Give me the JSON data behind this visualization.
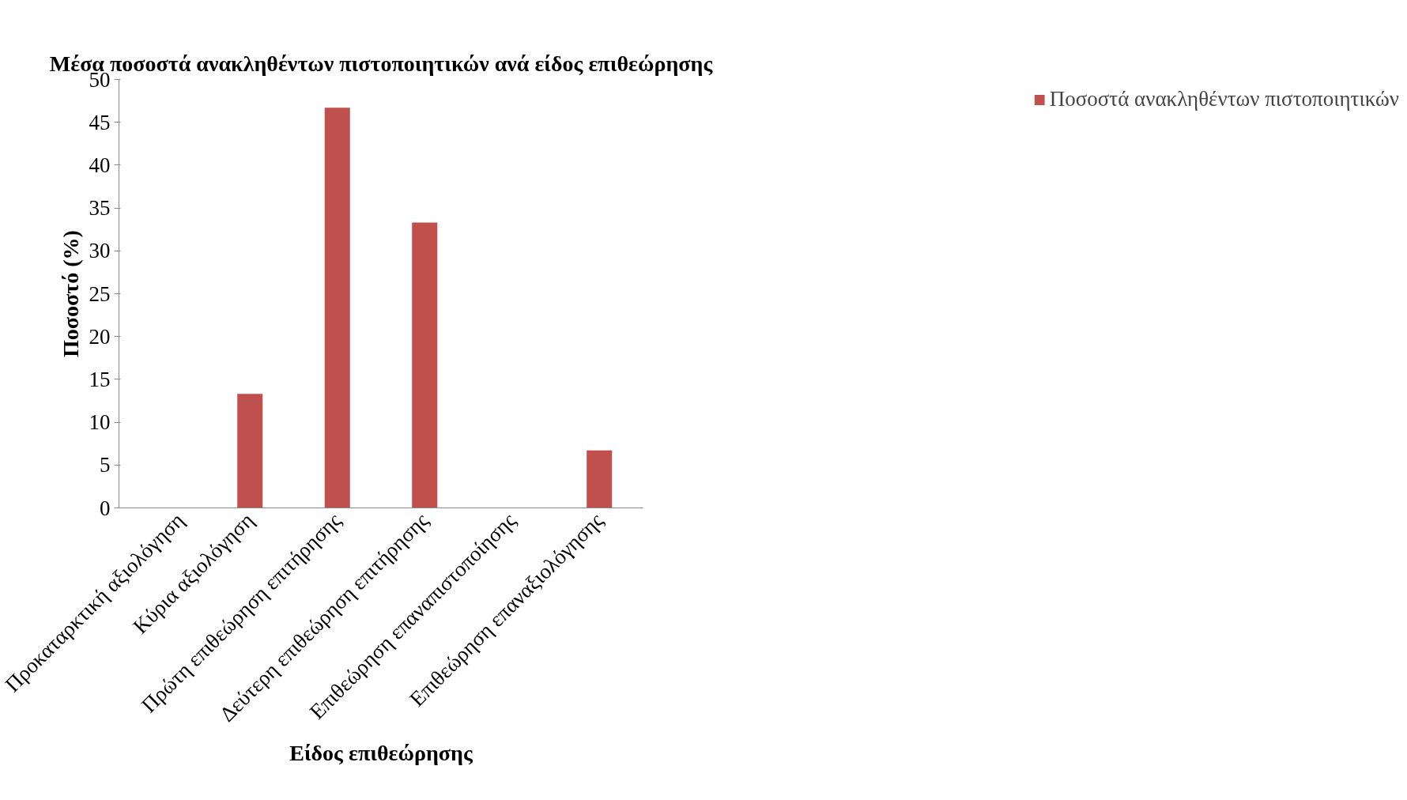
{
  "chart_data": {
    "type": "bar",
    "title": "Μέσα ποσοστά ανακληθέντων πιστοποιητικών ανά είδος επιθεώρησης",
    "xlabel": "Είδος επιθεώρησης",
    "ylabel": "Ποσοστό (%)",
    "categories": [
      "Προκαταρκτική αξιολόγηση",
      "Κύρια αξιολόγηση",
      "Πρώτη επιθεώρηση επιτήρησης",
      "Δεύτερη επιθεώρηση επιτήρησης",
      "Επιθεώρηση επαναπιστοποίησης",
      "Επιθεώρηση επαναξιολόγησης"
    ],
    "series": [
      {
        "name": "Ποσοστά ανακληθέντων πιστοποιητικών",
        "color": "#c0504d",
        "values": [
          0,
          13.3,
          46.7,
          33.3,
          0,
          6.7
        ]
      }
    ],
    "ylim": [
      0,
      50
    ],
    "yticks": [
      0,
      5,
      10,
      15,
      20,
      25,
      30,
      35,
      40,
      45,
      50
    ],
    "grid": false,
    "legend": "right"
  }
}
